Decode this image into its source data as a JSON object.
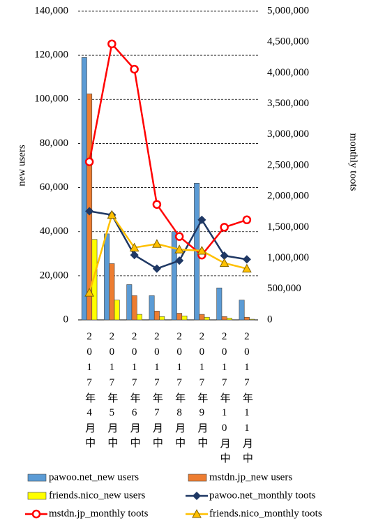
{
  "chart_data": {
    "type": "combo",
    "y_label": "new users",
    "y2_label": "monthly toots",
    "categories": [
      "2017年4月中",
      "2017年5月中",
      "2017年6月中",
      "2017年7月中",
      "2017年8月中",
      "2017年9月中",
      "2017年10月中",
      "2017年11月中"
    ],
    "ylim": [
      0,
      140000
    ],
    "yticks": [
      0,
      {
        "value": 20000,
        "label": "20,000"
      },
      {
        "value": 40000,
        "label": "40,000"
      },
      {
        "value": 60000,
        "label": "60,000"
      },
      {
        "value": 80000,
        "label": "80,000"
      },
      {
        "value": 100000,
        "label": "100,000"
      },
      {
        "value": 120000,
        "label": "120,000"
      },
      {
        "value": 140000,
        "label": "140,000"
      }
    ],
    "y2lim": [
      0,
      5000000
    ],
    "y2ticks": [
      0,
      {
        "value": 500000,
        "label": "500,000"
      },
      {
        "value": 1000000,
        "label": "1,000,000"
      },
      {
        "value": 1500000,
        "label": "1,500,000"
      },
      {
        "value": 2000000,
        "label": "2,000,000"
      },
      {
        "value": 2500000,
        "label": "2,500,000"
      },
      {
        "value": 3000000,
        "label": "3,000,000"
      },
      {
        "value": 3500000,
        "label": "3,500,000"
      },
      {
        "value": 4000000,
        "label": "4,000,000"
      },
      {
        "value": 4500000,
        "label": "4,500,000"
      },
      {
        "value": 5000000,
        "label": "5,000,000"
      }
    ],
    "grid": true,
    "series": [
      {
        "name": "pawoo.net_new users",
        "type": "bar",
        "color": "#5b9bd5",
        "values": [
          119000,
          39000,
          16000,
          11000,
          40000,
          62000,
          14500,
          9000
        ]
      },
      {
        "name": "mstdn.jp_new users",
        "type": "bar",
        "color": "#ed7d31",
        "values": [
          102500,
          25500,
          11000,
          4000,
          3000,
          2500,
          1500,
          1200
        ]
      },
      {
        "name": "friends.nico_new users",
        "type": "bar",
        "color": "#ffff00",
        "values": [
          36500,
          9000,
          2500,
          1500,
          1800,
          1200,
          800,
          300
        ]
      },
      {
        "name": "pawoo.net_monthly toots",
        "type": "line",
        "axis": "y2",
        "marker": "diamond",
        "color": "#1f3864",
        "values": [
          1760000,
          1700000,
          1050000,
          830000,
          960000,
          1620000,
          1040000,
          980000
        ]
      },
      {
        "name": "mstdn.jp_monthly toots",
        "type": "line",
        "axis": "y2",
        "marker": "circle",
        "color": "#ff0000",
        "values": [
          2560000,
          4470000,
          4060000,
          1870000,
          1350000,
          1050000,
          1500000,
          1620000
        ]
      },
      {
        "name": "friends.nico_monthly toots",
        "type": "line",
        "axis": "y2",
        "marker": "triangle",
        "color": "#ffc000",
        "values": [
          440000,
          1700000,
          1170000,
          1230000,
          1140000,
          1120000,
          920000,
          830000
        ]
      }
    ]
  }
}
